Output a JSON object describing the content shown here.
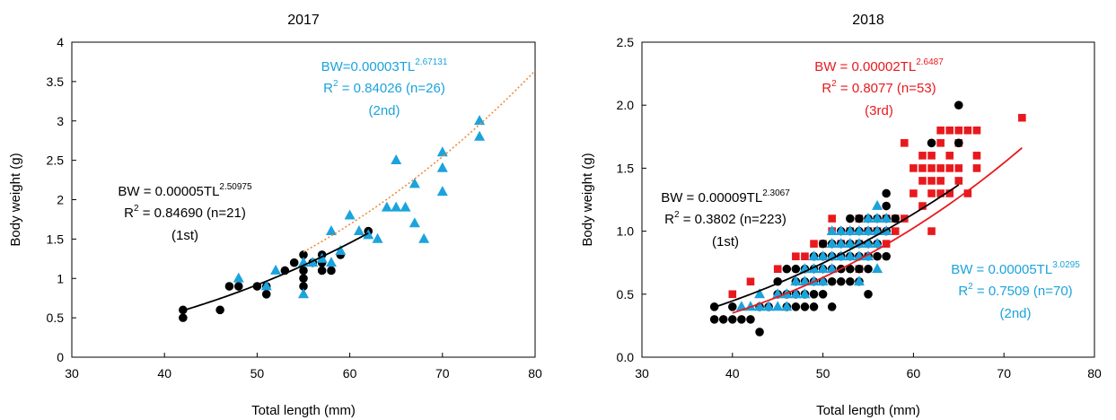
{
  "colors": {
    "black": "#000000",
    "blue": "#1ba3dc",
    "red": "#e8191e",
    "orange": "#f08a3c"
  },
  "chart_data": [
    {
      "type": "scatter",
      "title": "2017",
      "xlabel": "Total length (mm)",
      "ylabel": "Body weight (g)",
      "xlim": [
        30,
        80
      ],
      "ylim": [
        0,
        4
      ],
      "xticks": [
        "30",
        "40",
        "50",
        "60",
        "70",
        "80"
      ],
      "yticks": [
        "0",
        "0.5",
        "1",
        "1.5",
        "2",
        "2.5",
        "3",
        "3.5",
        "4"
      ],
      "series": [
        {
          "cohort": "(1st)",
          "marker": "circle",
          "color": "#000000",
          "equation": {
            "prefix": "BW = 0.00005TL",
            "exponent": "2.50975",
            "r2_prefix": "R",
            "r2_sup": "2",
            "r2_value": " = 0.84690 (n=21)"
          },
          "fit": {
            "a": 5e-05,
            "b": 2.50975,
            "x_range": [
              42,
              62
            ],
            "style": "solid"
          },
          "points": [
            [
              42,
              0.5
            ],
            [
              42,
              0.6
            ],
            [
              46,
              0.6
            ],
            [
              47,
              0.9
            ],
            [
              48,
              0.9
            ],
            [
              50,
              0.9
            ],
            [
              51,
              0.8
            ],
            [
              51,
              0.9
            ],
            [
              53,
              1.1
            ],
            [
              54,
              1.2
            ],
            [
              55,
              0.9
            ],
            [
              55,
              1.0
            ],
            [
              55,
              1.1
            ],
            [
              55,
              1.3
            ],
            [
              56,
              1.2
            ],
            [
              57,
              1.1
            ],
            [
              57,
              1.2
            ],
            [
              57,
              1.3
            ],
            [
              58,
              1.1
            ],
            [
              59,
              1.3
            ],
            [
              62,
              1.6
            ]
          ]
        },
        {
          "cohort": "(2nd)",
          "marker": "triangle",
          "color": "#1ba3dc",
          "equation": {
            "prefix": "BW=0.00003TL",
            "exponent": "2.67131",
            "r2_prefix": "R",
            "r2_sup": "2",
            "r2_value": " = 0.84026 (n=26)"
          },
          "fit": {
            "a": 3e-05,
            "b": 2.67131,
            "x_range": [
              55,
              80
            ],
            "style": "dotted"
          },
          "points": [
            [
              48,
              1.0
            ],
            [
              51,
              0.9
            ],
            [
              52,
              1.1
            ],
            [
              55,
              0.8
            ],
            [
              55,
              1.2
            ],
            [
              56,
              1.2
            ],
            [
              58,
              1.2
            ],
            [
              58,
              1.6
            ],
            [
              60,
              1.8
            ],
            [
              61,
              1.6
            ],
            [
              63,
              1.5
            ],
            [
              64,
              1.9
            ],
            [
              65,
              1.9
            ],
            [
              65,
              2.5
            ],
            [
              66,
              1.9
            ],
            [
              67,
              1.7
            ],
            [
              67,
              2.2
            ],
            [
              68,
              1.5
            ],
            [
              70,
              2.1
            ],
            [
              70,
              2.4
            ],
            [
              70,
              2.6
            ],
            [
              74,
              2.8
            ],
            [
              74,
              3.0
            ],
            [
              57,
              1.25
            ],
            [
              59,
              1.35
            ],
            [
              62,
              1.55
            ]
          ]
        }
      ]
    },
    {
      "type": "scatter",
      "title": "2018",
      "xlabel": "Total length (mm)",
      "ylabel": "Body weight (g)",
      "xlim": [
        30,
        80
      ],
      "ylim": [
        0,
        2.5
      ],
      "xticks": [
        "30",
        "40",
        "50",
        "60",
        "70",
        "80"
      ],
      "yticks": [
        "0.0",
        "0.5",
        "1.0",
        "1.5",
        "2.0",
        "2.5"
      ],
      "series": [
        {
          "cohort": "(3rd)",
          "marker": "square",
          "color": "#e8191e",
          "equation": {
            "prefix": "BW = 0.00002TL",
            "exponent": "2.6487",
            "r2_prefix": "R",
            "r2_sup": "2",
            "r2_value": " = 0.8077 (n=53)"
          },
          "fit": {
            "a": 2e-05,
            "b": 2.6487,
            "x_range": [
              40,
              72
            ],
            "style": "solid"
          },
          "points": [
            [
              40,
              0.5
            ],
            [
              42,
              0.6
            ],
            [
              45,
              0.7
            ],
            [
              47,
              0.8
            ],
            [
              48,
              0.8
            ],
            [
              49,
              0.9
            ],
            [
              50,
              0.9
            ],
            [
              51,
              1.0
            ],
            [
              51,
              1.1
            ],
            [
              52,
              0.9
            ],
            [
              53,
              1.0
            ],
            [
              54,
              0.7
            ],
            [
              54,
              0.9
            ],
            [
              54,
              1.1
            ],
            [
              55,
              0.8
            ],
            [
              55,
              1.0
            ],
            [
              56,
              1.0
            ],
            [
              57,
              0.9
            ],
            [
              57,
              1.1
            ],
            [
              58,
              1.0
            ],
            [
              58,
              1.1
            ],
            [
              59,
              1.1
            ],
            [
              59,
              1.7
            ],
            [
              60,
              1.5
            ],
            [
              60,
              1.3
            ],
            [
              61,
              1.2
            ],
            [
              61,
              1.4
            ],
            [
              61,
              1.5
            ],
            [
              61,
              1.6
            ],
            [
              62,
              1.0
            ],
            [
              62,
              1.3
            ],
            [
              62,
              1.4
            ],
            [
              62,
              1.5
            ],
            [
              62,
              1.6
            ],
            [
              63,
              1.3
            ],
            [
              63,
              1.4
            ],
            [
              63,
              1.5
            ],
            [
              63,
              1.7
            ],
            [
              64,
              1.3
            ],
            [
              64,
              1.5
            ],
            [
              64,
              1.6
            ],
            [
              64,
              1.8
            ],
            [
              65,
              1.4
            ],
            [
              65,
              1.5
            ],
            [
              65,
              1.7
            ],
            [
              65,
              1.8
            ],
            [
              66,
              1.3
            ],
            [
              66,
              1.8
            ],
            [
              67,
              1.5
            ],
            [
              67,
              1.6
            ],
            [
              67,
              1.8
            ],
            [
              72,
              1.9
            ],
            [
              63,
              1.8
            ]
          ]
        },
        {
          "cohort": "(1st)",
          "marker": "circle",
          "color": "#000000",
          "equation": {
            "prefix": "BW = 0.00009TL",
            "exponent": "2.3067",
            "r2_prefix": "R",
            "r2_sup": "2",
            "r2_value": " = 0.3802 (n=223)"
          },
          "fit": {
            "a": 9e-05,
            "b": 2.3067,
            "x_range": [
              38,
              65
            ],
            "style": "solid"
          },
          "points": [
            [
              38,
              0.3
            ],
            [
              38,
              0.4
            ],
            [
              39,
              0.3
            ],
            [
              40,
              0.3
            ],
            [
              40,
              0.4
            ],
            [
              41,
              0.3
            ],
            [
              42,
              0.3
            ],
            [
              43,
              0.2
            ],
            [
              43,
              0.4
            ],
            [
              44,
              0.4
            ],
            [
              45,
              0.5
            ],
            [
              45,
              0.6
            ],
            [
              46,
              0.4
            ],
            [
              46,
              0.5
            ],
            [
              46,
              0.7
            ],
            [
              47,
              0.4
            ],
            [
              47,
              0.5
            ],
            [
              47,
              0.6
            ],
            [
              47,
              0.7
            ],
            [
              48,
              0.4
            ],
            [
              48,
              0.5
            ],
            [
              48,
              0.6
            ],
            [
              48,
              0.7
            ],
            [
              49,
              0.4
            ],
            [
              49,
              0.5
            ],
            [
              49,
              0.6
            ],
            [
              49,
              0.7
            ],
            [
              49,
              0.8
            ],
            [
              50,
              0.5
            ],
            [
              50,
              0.6
            ],
            [
              50,
              0.7
            ],
            [
              50,
              0.8
            ],
            [
              50,
              0.9
            ],
            [
              51,
              0.4
            ],
            [
              51,
              0.6
            ],
            [
              51,
              0.7
            ],
            [
              51,
              0.8
            ],
            [
              51,
              0.9
            ],
            [
              52,
              0.6
            ],
            [
              52,
              0.7
            ],
            [
              52,
              0.8
            ],
            [
              52,
              0.9
            ],
            [
              52,
              1.0
            ],
            [
              53,
              0.6
            ],
            [
              53,
              0.7
            ],
            [
              53,
              0.8
            ],
            [
              53,
              0.9
            ],
            [
              53,
              1.0
            ],
            [
              53,
              1.1
            ],
            [
              54,
              0.6
            ],
            [
              54,
              0.7
            ],
            [
              54,
              0.8
            ],
            [
              54,
              0.9
            ],
            [
              54,
              1.0
            ],
            [
              54,
              1.1
            ],
            [
              55,
              0.5
            ],
            [
              55,
              0.7
            ],
            [
              55,
              0.8
            ],
            [
              55,
              0.9
            ],
            [
              55,
              1.0
            ],
            [
              55,
              1.1
            ],
            [
              56,
              0.8
            ],
            [
              56,
              0.9
            ],
            [
              56,
              1.0
            ],
            [
              56,
              1.1
            ],
            [
              57,
              0.8
            ],
            [
              57,
              1.0
            ],
            [
              57,
              1.1
            ],
            [
              57,
              1.2
            ],
            [
              57,
              1.3
            ],
            [
              58,
              1.1
            ],
            [
              62,
              1.7
            ],
            [
              65,
              1.7
            ],
            [
              65,
              2.0
            ]
          ]
        },
        {
          "cohort": "(2nd)",
          "marker": "triangle",
          "color": "#1ba3dc",
          "equation": {
            "prefix": "BW = 0.00005TL",
            "exponent": "3.0295",
            "r2_prefix": "R",
            "r2_sup": "2",
            "r2_value": " = 0.7509 (n=70)"
          },
          "fit": {
            "a": 5e-05,
            "b": 3.0295,
            "x_range": [
              41,
              58
            ],
            "style": "solid"
          },
          "points": [
            [
              41,
              0.4
            ],
            [
              42,
              0.4
            ],
            [
              43,
              0.4
            ],
            [
              43,
              0.5
            ],
            [
              44,
              0.4
            ],
            [
              45,
              0.4
            ],
            [
              45,
              0.5
            ],
            [
              46,
              0.4
            ],
            [
              46,
              0.5
            ],
            [
              47,
              0.5
            ],
            [
              47,
              0.6
            ],
            [
              48,
              0.5
            ],
            [
              48,
              0.6
            ],
            [
              48,
              0.7
            ],
            [
              49,
              0.6
            ],
            [
              49,
              0.7
            ],
            [
              49,
              0.8
            ],
            [
              50,
              0.6
            ],
            [
              50,
              0.7
            ],
            [
              50,
              0.8
            ],
            [
              51,
              0.7
            ],
            [
              51,
              0.8
            ],
            [
              51,
              0.9
            ],
            [
              51,
              1.0
            ],
            [
              52,
              0.8
            ],
            [
              52,
              0.9
            ],
            [
              52,
              1.0
            ],
            [
              53,
              0.8
            ],
            [
              53,
              0.9
            ],
            [
              53,
              1.0
            ],
            [
              54,
              0.6
            ],
            [
              54,
              0.8
            ],
            [
              54,
              0.9
            ],
            [
              54,
              1.0
            ],
            [
              55,
              0.8
            ],
            [
              55,
              0.9
            ],
            [
              55,
              1.0
            ],
            [
              55,
              1.1
            ],
            [
              56,
              0.7
            ],
            [
              56,
              0.9
            ],
            [
              56,
              1.0
            ],
            [
              56,
              1.1
            ],
            [
              56,
              1.2
            ],
            [
              57,
              1.0
            ],
            [
              57,
              1.1
            ]
          ]
        }
      ]
    }
  ]
}
